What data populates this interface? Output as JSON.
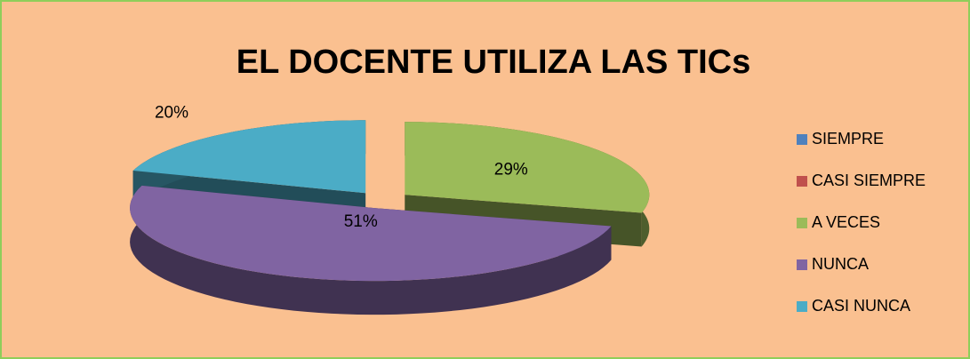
{
  "chart_data": {
    "type": "pie",
    "title": "EL DOCENTE UTILIZA LAS TICs",
    "categories": [
      "SIEMPRE",
      "CASI SIEMPRE",
      "A VECES",
      "NUNCA",
      "CASI NUNCA"
    ],
    "values": [
      0,
      0,
      29,
      51,
      20
    ],
    "value_labels": [
      null,
      null,
      "29%",
      "51%",
      "20%"
    ],
    "colors": [
      "#4f81bd",
      "#c0504d",
      "#9bbb59",
      "#8064a2",
      "#4bacc6"
    ],
    "legend": "right"
  }
}
